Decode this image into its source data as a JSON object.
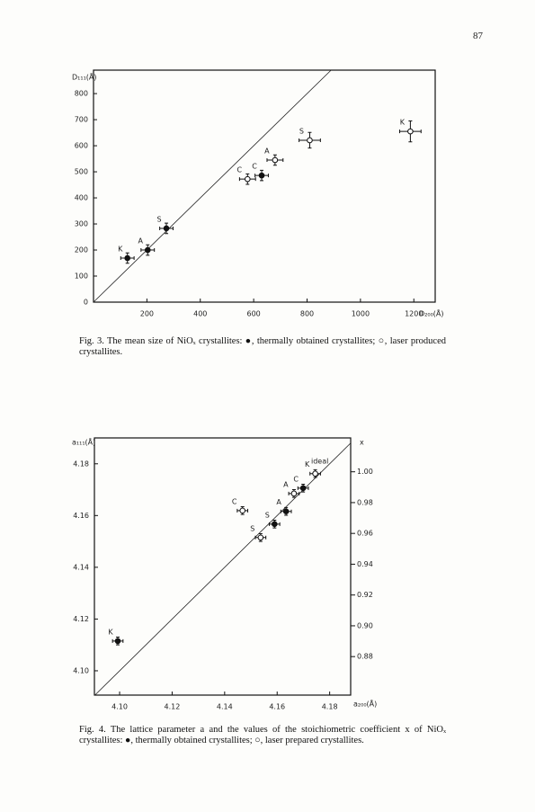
{
  "page_number": "87",
  "chart_data": [
    {
      "type": "scatter",
      "y_label": "D₁₁₁(Å)",
      "x_label": "D₂₀₀(Å)",
      "xlim": [
        0,
        1280
      ],
      "ylim": [
        0,
        890
      ],
      "xticks": [
        200,
        400,
        600,
        800,
        1000,
        1200
      ],
      "yticks": [
        0,
        100,
        200,
        300,
        400,
        500,
        600,
        700,
        800
      ],
      "series": [
        {
          "marker": "filled",
          "color": "#111111",
          "labels": [
            "K",
            "A",
            "S",
            "C"
          ],
          "x": [
            127,
            203,
            273,
            630
          ],
          "values": [
            169,
            200,
            283,
            486
          ],
          "xerr": [
            25,
            25,
            25,
            25
          ],
          "yerr": [
            20,
            20,
            20,
            20
          ]
        },
        {
          "marker": "open",
          "color": "#111111",
          "labels": [
            "C",
            "A",
            "S",
            "K"
          ],
          "x": [
            577,
            680,
            810,
            1187
          ],
          "values": [
            472,
            545,
            621,
            655
          ],
          "xerr": [
            30,
            30,
            40,
            40
          ],
          "yerr": [
            20,
            20,
            30,
            40
          ]
        }
      ]
    },
    {
      "type": "scatter",
      "y_label": "a₁₁₁(Å)",
      "x_label": "a₂₀₀(Å)",
      "y2_label": "x",
      "annotation": "ideal",
      "xlim": [
        4.0904,
        4.188
      ],
      "ylim": [
        4.0906,
        4.19
      ],
      "y2lim": [
        0.855,
        1.022
      ],
      "xticks": [
        {
          "value": 4.1,
          "label": "4.10"
        },
        4.12,
        4.14,
        4.16,
        4.18
      ],
      "yticks": [
        {
          "value": 4.1,
          "label": "4.10"
        },
        4.12,
        4.14,
        4.16,
        4.18
      ],
      "y2ticks": [
        {
          "value": 1,
          "label": "1.00"
        },
        0.98,
        0.96,
        0.94,
        0.92,
        {
          "value": 0.9,
          "label": "0.90"
        },
        0.88
      ],
      "series": [
        {
          "marker": "filled",
          "color": "#111111",
          "labels": [
            "K",
            "S",
            "A",
            "C"
          ],
          "x": [
            4.0993,
            4.159,
            4.1634,
            4.1699
          ],
          "values": [
            4.1115,
            4.1567,
            4.1616,
            4.1706
          ],
          "xerr": [
            0.002,
            0.002,
            0.002,
            0.002
          ],
          "yerr": [
            0.0015,
            0.0015,
            0.0015,
            0.0015
          ]
        },
        {
          "marker": "open",
          "color": "#111111",
          "labels": [
            "C",
            "S",
            "A",
            "K"
          ],
          "x": [
            4.1468,
            4.1537,
            4.1664,
            4.1745
          ],
          "values": [
            4.1619,
            4.1515,
            4.1685,
            4.1762
          ],
          "xerr": [
            0.002,
            0.002,
            0.002,
            0.002
          ],
          "yerr": [
            0.0015,
            0.0015,
            0.0015,
            0.0015
          ]
        }
      ]
    }
  ],
  "captions": [
    "Fig. 3. The mean size of NiOₓ crystallites: ●, thermally obtained crystallites; ○, laser produced crystallites.",
    "Fig. 4. The lattice parameter a and the values of the stoichiometric coefficient x of NiOₓ crystallites: ●, thermally obtained crystallites; ○, laser prepared crystallites."
  ]
}
